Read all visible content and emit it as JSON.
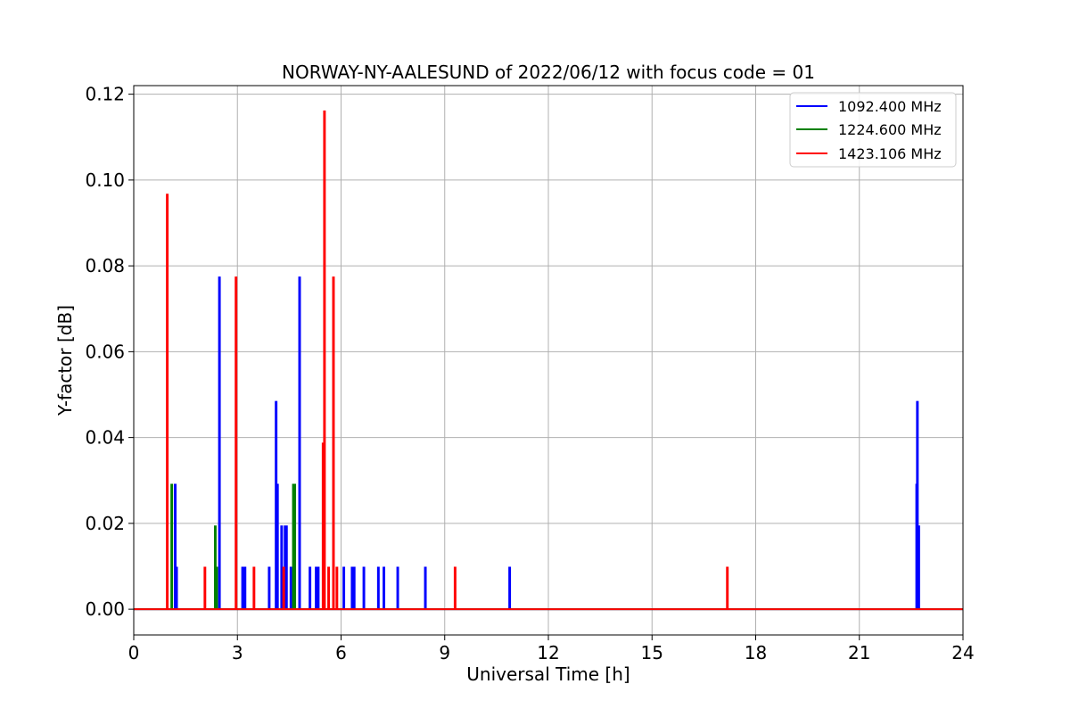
{
  "chart_data": {
    "type": "line",
    "title": "NORWAY-NY-AALESUND of 2022/06/12 with focus code = 01",
    "xlabel": "Universal Time [h]",
    "ylabel": "Y-factor [dB]",
    "xlim": [
      0,
      24
    ],
    "ylim": [
      -0.006,
      0.122
    ],
    "xticks": [
      0,
      3,
      6,
      9,
      12,
      15,
      18,
      21,
      24
    ],
    "yticks": [
      0.0,
      0.02,
      0.04,
      0.06,
      0.08,
      0.1,
      0.12
    ],
    "ytick_labels": [
      "0.00",
      "0.02",
      "0.04",
      "0.06",
      "0.08",
      "0.10",
      "0.12"
    ],
    "grid": true,
    "legend_position": "top-right",
    "baseline": 0.0,
    "series": [
      {
        "name": "1092.400 MHz",
        "color": "#0000ff",
        "spikes": [
          {
            "x": 1.2,
            "y": 0.029
          },
          {
            "x": 1.24,
            "y": 0.0097
          },
          {
            "x": 2.48,
            "y": 0.0773
          },
          {
            "x": 3.15,
            "y": 0.0097
          },
          {
            "x": 3.22,
            "y": 0.0097
          },
          {
            "x": 3.92,
            "y": 0.0097
          },
          {
            "x": 4.12,
            "y": 0.0483
          },
          {
            "x": 4.16,
            "y": 0.029
          },
          {
            "x": 4.28,
            "y": 0.0193
          },
          {
            "x": 4.38,
            "y": 0.0193
          },
          {
            "x": 4.42,
            "y": 0.0193
          },
          {
            "x": 4.55,
            "y": 0.0097
          },
          {
            "x": 4.8,
            "y": 0.0773
          },
          {
            "x": 5.1,
            "y": 0.0097
          },
          {
            "x": 5.28,
            "y": 0.0097
          },
          {
            "x": 5.34,
            "y": 0.0097
          },
          {
            "x": 6.08,
            "y": 0.0097
          },
          {
            "x": 6.32,
            "y": 0.0097
          },
          {
            "x": 6.38,
            "y": 0.0097
          },
          {
            "x": 6.66,
            "y": 0.0097
          },
          {
            "x": 7.08,
            "y": 0.0097
          },
          {
            "x": 7.24,
            "y": 0.0097
          },
          {
            "x": 7.64,
            "y": 0.0097
          },
          {
            "x": 8.44,
            "y": 0.0097
          },
          {
            "x": 10.88,
            "y": 0.0097
          },
          {
            "x": 22.66,
            "y": 0.029
          },
          {
            "x": 22.68,
            "y": 0.0483
          },
          {
            "x": 22.72,
            "y": 0.0193
          }
        ]
      },
      {
        "name": "1224.600 MHz",
        "color": "#008000",
        "spikes": [
          {
            "x": 1.1,
            "y": 0.029
          },
          {
            "x": 2.36,
            "y": 0.0193
          },
          {
            "x": 2.4,
            "y": 0.0097
          },
          {
            "x": 4.62,
            "y": 0.029
          },
          {
            "x": 4.66,
            "y": 0.029
          }
        ]
      },
      {
        "name": "1423.106 MHz",
        "color": "#ff0000",
        "spikes": [
          {
            "x": 0.97,
            "y": 0.0966
          },
          {
            "x": 2.06,
            "y": 0.0097
          },
          {
            "x": 2.96,
            "y": 0.0773
          },
          {
            "x": 3.48,
            "y": 0.0097
          },
          {
            "x": 4.34,
            "y": 0.0097
          },
          {
            "x": 5.48,
            "y": 0.0386
          },
          {
            "x": 5.52,
            "y": 0.116
          },
          {
            "x": 5.64,
            "y": 0.0097
          },
          {
            "x": 5.78,
            "y": 0.0773
          },
          {
            "x": 5.88,
            "y": 0.0097
          },
          {
            "x": 9.3,
            "y": 0.0097
          },
          {
            "x": 17.18,
            "y": 0.0097
          }
        ]
      }
    ]
  }
}
